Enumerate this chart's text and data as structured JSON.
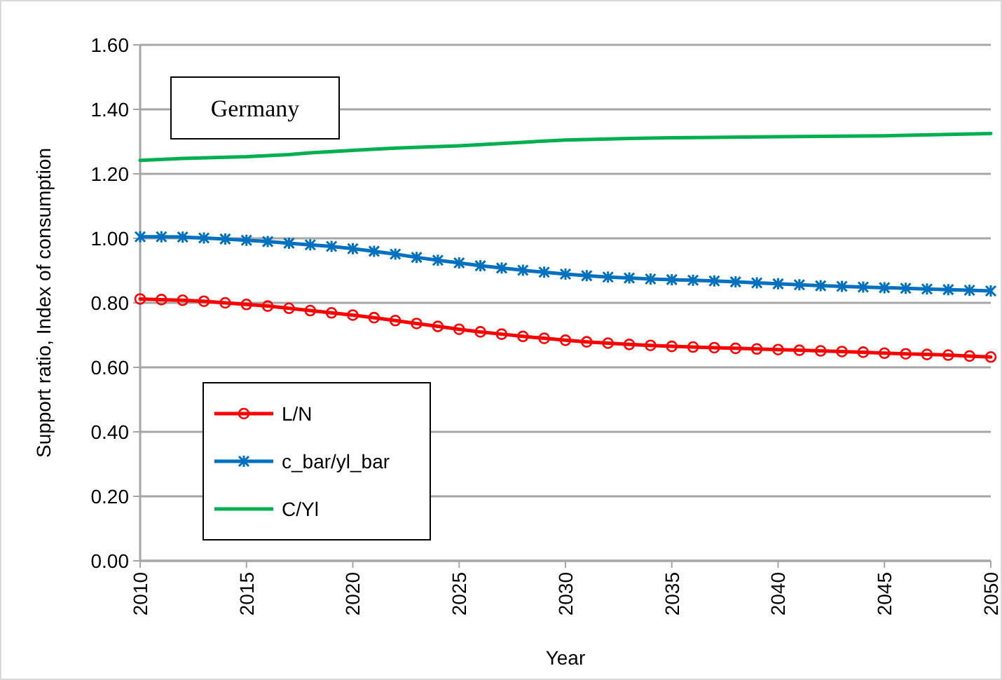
{
  "chart_data": {
    "type": "line",
    "title": "Germany",
    "xlabel": "Year",
    "ylabel": "Support ratio, Index of consumption",
    "x": [
      2010,
      2011,
      2012,
      2013,
      2014,
      2015,
      2016,
      2017,
      2018,
      2019,
      2020,
      2021,
      2022,
      2023,
      2024,
      2025,
      2026,
      2027,
      2028,
      2029,
      2030,
      2031,
      2032,
      2033,
      2034,
      2035,
      2036,
      2037,
      2038,
      2039,
      2040,
      2041,
      2042,
      2043,
      2044,
      2045,
      2046,
      2047,
      2048,
      2049,
      2050
    ],
    "series": [
      {
        "name": "L/N",
        "color": "#ff0000",
        "marker": "circle",
        "values": [
          0.812,
          0.81,
          0.808,
          0.805,
          0.8,
          0.795,
          0.79,
          0.783,
          0.776,
          0.769,
          0.762,
          0.754,
          0.745,
          0.736,
          0.727,
          0.718,
          0.71,
          0.703,
          0.696,
          0.69,
          0.684,
          0.679,
          0.675,
          0.671,
          0.668,
          0.665,
          0.663,
          0.661,
          0.659,
          0.657,
          0.655,
          0.653,
          0.651,
          0.649,
          0.647,
          0.644,
          0.642,
          0.64,
          0.638,
          0.635,
          0.632
        ]
      },
      {
        "name": "c_bar/yl_bar",
        "color": "#0070c0",
        "marker": "cross",
        "values": [
          1.005,
          1.005,
          1.004,
          1.001,
          0.998,
          0.994,
          0.99,
          0.985,
          0.98,
          0.975,
          0.968,
          0.96,
          0.951,
          0.941,
          0.932,
          0.924,
          0.915,
          0.908,
          0.901,
          0.895,
          0.889,
          0.884,
          0.88,
          0.877,
          0.874,
          0.872,
          0.87,
          0.868,
          0.865,
          0.862,
          0.859,
          0.856,
          0.853,
          0.851,
          0.849,
          0.847,
          0.845,
          0.843,
          0.841,
          0.839,
          0.837
        ]
      },
      {
        "name": "C/Yl",
        "color": "#00b050",
        "marker": "none",
        "x": [
          2010,
          2012,
          2015,
          2017,
          2018,
          2020,
          2022,
          2025,
          2028,
          2030,
          2033,
          2035,
          2040,
          2045,
          2050
        ],
        "values": [
          1.242,
          1.248,
          1.253,
          1.26,
          1.265,
          1.273,
          1.28,
          1.287,
          1.298,
          1.305,
          1.31,
          1.312,
          1.315,
          1.318,
          1.325
        ]
      }
    ],
    "xlim": [
      2010,
      2050
    ],
    "xticks": [
      2010,
      2015,
      2020,
      2025,
      2030,
      2035,
      2040,
      2045,
      2050
    ],
    "ylim": [
      0,
      1.6
    ],
    "yticks": [
      {
        "value": 0,
        "label": "0.00"
      },
      {
        "value": 0.2,
        "label": "0.20"
      },
      {
        "value": 0.4,
        "label": "0.40"
      },
      {
        "value": 0.6,
        "label": "0.60"
      },
      {
        "value": 0.8,
        "label": "0.80"
      },
      {
        "value": 1,
        "label": "1.00"
      },
      {
        "value": 1.2,
        "label": "1.20"
      },
      {
        "value": 1.4,
        "label": "1.40"
      },
      {
        "value": 1.6,
        "label": "1.60"
      }
    ],
    "grid": "y",
    "legend": "bottom left"
  }
}
